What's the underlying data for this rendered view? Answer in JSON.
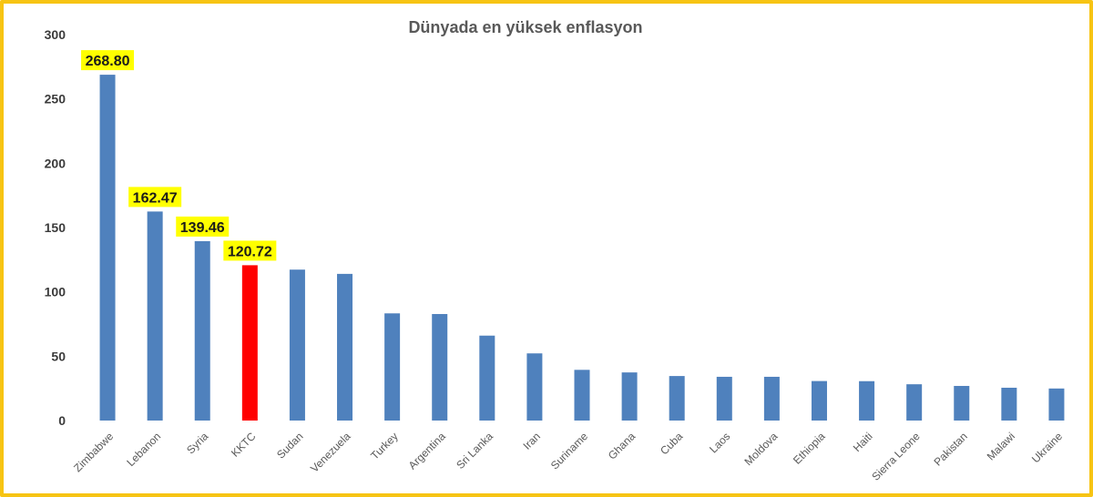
{
  "chart_data": {
    "type": "bar",
    "title": "Dünyada en yüksek enflasyon",
    "xlabel": "",
    "ylabel": "",
    "ylim": [
      0,
      300
    ],
    "yticks": [
      0,
      50,
      100,
      150,
      200,
      250,
      300
    ],
    "grid": false,
    "legend": "none",
    "categories": [
      "Zimbabwe",
      "Lebanon",
      "Syria",
      "KKTC",
      "Sudan",
      "Venezuela",
      "Turkey",
      "Argentina",
      "Sri Lanka",
      "Iran",
      "Suriname",
      "Ghana",
      "Cuba",
      "Laos",
      "Moldova",
      "Ethiopia",
      "Haiti",
      "Sierra Leone",
      "Pakistan",
      "Malawi",
      "Ukraine"
    ],
    "values": [
      268.8,
      162.47,
      139.46,
      120.72,
      117.3,
      114.0,
      83.3,
      82.8,
      66.0,
      52.2,
      39.4,
      37.4,
      34.6,
      34.0,
      34.0,
      30.7,
      30.6,
      28.2,
      26.9,
      25.5,
      24.9
    ],
    "data_labels": [
      {
        "index": 0,
        "text": "268.80"
      },
      {
        "index": 1,
        "text": "162.47"
      },
      {
        "index": 2,
        "text": "139.46"
      },
      {
        "index": 3,
        "text": "120.72"
      }
    ],
    "highlight_index": 3,
    "colors": {
      "bar": "#4f81bd",
      "highlight_bar": "#ff0000",
      "label_background": "#ffff00",
      "frame": "#f7c413"
    }
  }
}
